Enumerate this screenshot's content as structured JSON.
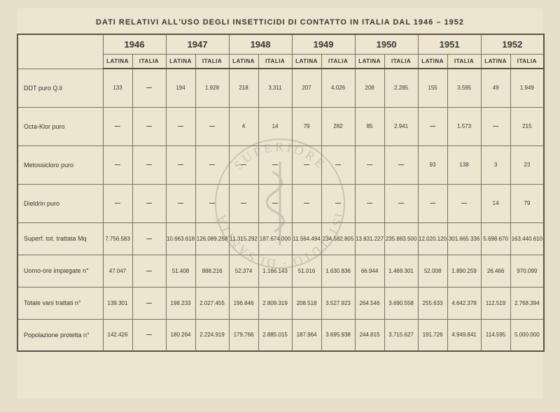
{
  "title": "DATI RELATIVI ALL'USO DEGLI INSETTICIDI DI CONTATTO IN ITALIA DAL 1946 – 1952",
  "years": [
    "1946",
    "1947",
    "1948",
    "1949",
    "1950",
    "1951",
    "1952"
  ],
  "subcols": [
    "LATINA",
    "ITALIA"
  ],
  "watermark_text": "ISTITUTO SUPERIORE DI SANITÀ",
  "colors": {
    "page_bg": "#ede5cf",
    "outer_bg": "#e8dfc8",
    "border": "#7a7262",
    "border_heavy": "#5a5344",
    "text": "#3a362f",
    "watermark": "#8a8270"
  },
  "rows": [
    {
      "label": "DDT puro            Q.li",
      "cells": [
        "133",
        "—",
        "194",
        "1.928",
        "218",
        "3.311",
        "207",
        "4.026",
        "208",
        "2.285",
        "155",
        "3.595",
        "49",
        "1.949"
      ]
    },
    {
      "label": "Octa-Klor puro",
      "cells": [
        "—",
        "—",
        "—",
        "—",
        "4",
        "14",
        "79",
        "282",
        "85",
        "2.941",
        "—",
        "1.573",
        "—",
        "215"
      ]
    },
    {
      "label": "Metossicloro puro",
      "cells": [
        "—",
        "—",
        "—",
        "—",
        "—",
        "—",
        "—",
        "—",
        "—",
        "—",
        "93",
        "138",
        "3",
        "23"
      ]
    },
    {
      "label": "Dieldrin puro",
      "cells": [
        "—",
        "—",
        "—",
        "—",
        "—",
        "—",
        "—",
        "—",
        "—",
        "—",
        "—",
        "—",
        "14",
        "79"
      ]
    }
  ],
  "rows2": [
    {
      "label": "Superf. tot. trattata  Mq",
      "cells": [
        "7.756.583",
        "—",
        "10.663.618",
        "126.089.258",
        "11.315.292",
        "187.674.000",
        "11.564.494",
        "234.582.805",
        "13.831.227",
        "235.883.500",
        "12.020.120",
        "301.665.336",
        "5.698.670",
        "163.440.610"
      ]
    },
    {
      "label": "Uomo-ore impiegate  n°",
      "cells": [
        "47.047",
        "—",
        "51.408",
        "888.216",
        "52.374",
        "1.166.143",
        "51.016",
        "1.630.836",
        "66.944",
        "1.469.301",
        "52.008",
        "1.890.259",
        "26.466",
        "970.099"
      ]
    },
    {
      "label": "Totale vani trattati    n°",
      "cells": [
        "139.301",
        "—",
        "198.233",
        "2.027.455",
        "196.846",
        "2.809.319",
        "208.518",
        "3.527.923",
        "264.546",
        "3.690.558",
        "255.633",
        "4.642.378",
        "112.519",
        "2.768.394"
      ]
    },
    {
      "label": "Popolazione protetta n°",
      "cells": [
        "142.426",
        "—",
        "180.264",
        "2.224.919",
        "179.766",
        "2.885.015",
        "187.964",
        "3.695.938",
        "244.815",
        "3.715.627",
        "191.726",
        "4.949.841",
        "114.595",
        "5.000.000"
      ]
    }
  ]
}
